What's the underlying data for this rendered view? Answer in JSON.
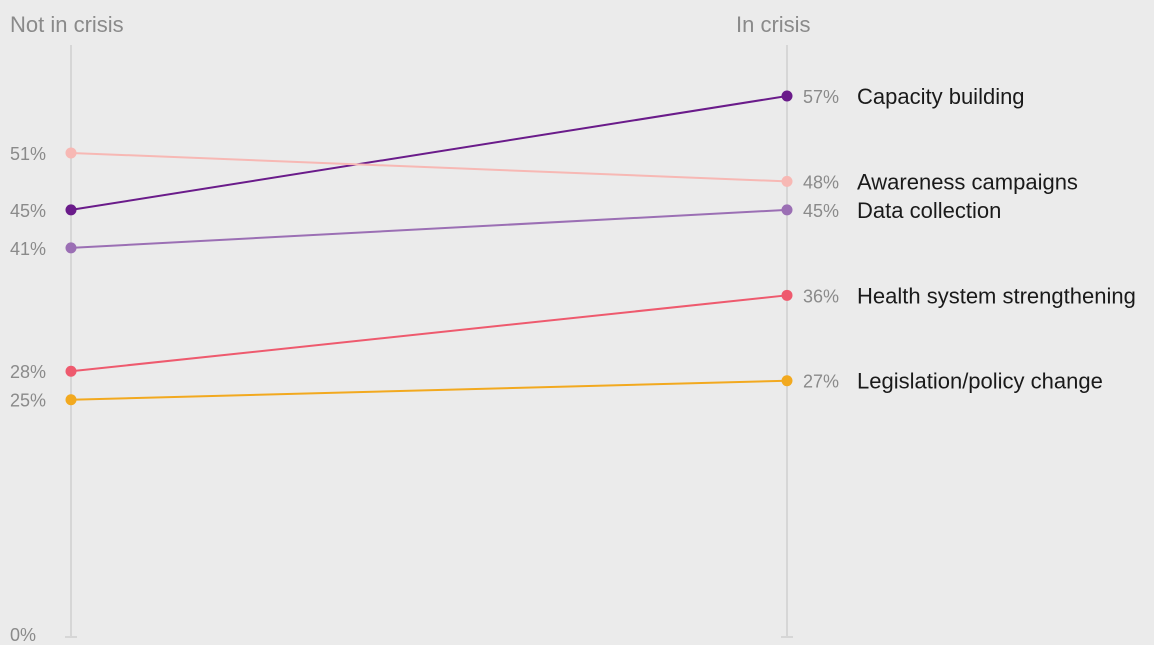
{
  "chart_data": {
    "type": "line",
    "x": [
      "Not in crisis",
      "In crisis"
    ],
    "ylim": [
      0,
      60
    ],
    "y_tick_labels": [
      "0%"
    ],
    "series": [
      {
        "name": "Capacity building",
        "values": [
          45,
          57
        ],
        "labels": [
          "45%",
          "57%"
        ],
        "color": "#6a1b8a"
      },
      {
        "name": "Awareness campaigns",
        "values": [
          51,
          48
        ],
        "labels": [
          "51%",
          "48%"
        ],
        "color": "#f7b8b4"
      },
      {
        "name": "Data collection",
        "values": [
          41,
          45
        ],
        "labels": [
          "41%",
          "45%"
        ],
        "color": "#9b6fb4"
      },
      {
        "name": "Health system strengthening",
        "values": [
          28,
          36
        ],
        "labels": [
          "28%",
          "36%"
        ],
        "color": "#ee5a6e"
      },
      {
        "name": "Legislation/policy change",
        "values": [
          25,
          27
        ],
        "labels": [
          "25%",
          "27%"
        ],
        "color": "#f2a91f"
      }
    ],
    "axis_color": "#d6d6d6",
    "grid": false
  }
}
